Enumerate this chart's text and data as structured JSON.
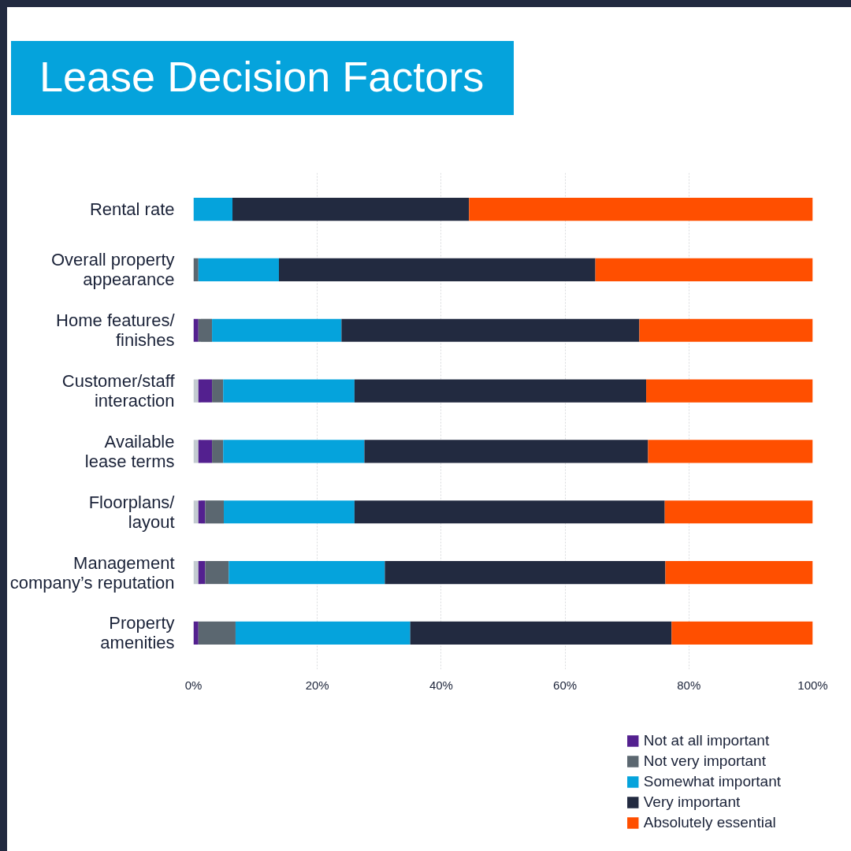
{
  "chart_data": {
    "type": "bar",
    "orientation": "horizontal",
    "stacked": true,
    "title": "Lease Decision Factors",
    "categories": [
      "Rental rate",
      "Overall property\nappearance",
      "Home features/\nfinishes",
      "Customer/staff\ninteraction",
      "Available\nlease terms",
      "Floorplans/\nlayout",
      "Management\ncompany’s reputation",
      "Property\namenities"
    ],
    "series": [
      {
        "color": "#c3cbd0",
        "values": [
          0,
          0,
          0,
          0.8,
          0.8,
          0.8,
          0.8,
          0
        ]
      },
      {
        "name": "Not at all important",
        "color": "#53208f",
        "values": [
          0,
          0,
          0.8,
          2.2,
          2.2,
          1.1,
          1.1,
          0.8
        ]
      },
      {
        "name": "Not very important",
        "color": "#5b6770",
        "values": [
          0,
          0.8,
          2.2,
          1.8,
          1.8,
          3.0,
          3.8,
          6.0
        ]
      },
      {
        "name": "Somewhat important",
        "color": "#05a3dc",
        "values": [
          6.3,
          13.0,
          20.9,
          21.2,
          22.8,
          21.1,
          25.2,
          28.2
        ]
      },
      {
        "name": "Very important",
        "color": "#222a40",
        "values": [
          38.2,
          51.1,
          48.1,
          47.1,
          45.8,
          50.1,
          45.3,
          42.2
        ]
      },
      {
        "name": "Absolutely essential",
        "color": "#ff4f00",
        "values": [
          55.5,
          35.1,
          28.0,
          26.9,
          26.6,
          23.9,
          23.8,
          22.8
        ]
      }
    ],
    "xlim": [
      0,
      100
    ],
    "xticks": [
      {
        "value": 0,
        "label": "0%"
      },
      {
        "value": 20,
        "label": "20%"
      },
      {
        "value": 40,
        "label": "40%"
      },
      {
        "value": 60,
        "label": "60%"
      },
      {
        "value": 80,
        "label": "80%"
      },
      {
        "value": 100,
        "label": "100%"
      }
    ],
    "grid": "x",
    "legend": "bottom right"
  }
}
